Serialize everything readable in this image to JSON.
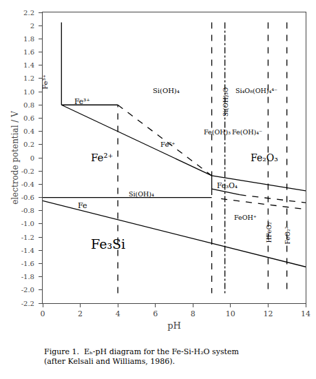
{
  "chart_data": {
    "type": "line",
    "xlabel": "pH",
    "ylabel": "electrode potential / V",
    "caption": "Figure 1.  Eₕ-pH diagram for the Fe-Si-H₂O system\n(after Kelsali and Williams, 1986).",
    "xlim": [
      0,
      14
    ],
    "ylim": [
      -2.2,
      2.2
    ],
    "xticks": [
      0,
      2,
      4,
      6,
      8,
      10,
      12,
      14
    ],
    "yticks": [
      -2.2,
      {
        "value": -2.0,
        "label": "-2.0"
      },
      -1.8,
      -1.6,
      -1.4,
      -1.2,
      {
        "value": -1.0,
        "label": "-1.0"
      },
      -0.8,
      -0.6,
      -0.4,
      -0.2,
      0,
      0.2,
      0.4,
      0.6,
      0.8,
      {
        "value": 1.0,
        "label": "1.0"
      },
      1.2,
      1.4,
      1.6,
      1.8,
      2,
      2.2
    ],
    "grid": false,
    "color": "#000000",
    "series": [
      {
        "x": [
          1.0,
          1.0
        ],
        "values": [
          2.05,
          0.8
        ],
        "line_style": "solid"
      },
      {
        "x": [
          1.0,
          4.0
        ],
        "values": [
          0.8,
          0.8
        ],
        "line_style": "solid"
      },
      {
        "x": [
          1.0,
          9.0
        ],
        "values": [
          0.8,
          -0.27
        ],
        "line_style": "solid"
      },
      {
        "x": [
          0.0,
          9.0
        ],
        "values": [
          -0.6,
          -0.6
        ],
        "line_style": "solid"
      },
      {
        "x": [
          0.0,
          14.0
        ],
        "values": [
          -0.65,
          -1.65
        ],
        "line_style": "solid"
      },
      {
        "x": [
          9.0,
          14.0
        ],
        "values": [
          -0.27,
          -0.5
        ],
        "line_style": "solid"
      },
      {
        "x": [
          9.0,
          9.0
        ],
        "values": [
          -0.27,
          -0.47
        ],
        "line_style": "solid"
      },
      {
        "x": [
          9.0,
          10.5
        ],
        "values": [
          -0.47,
          -0.56
        ],
        "line_style": "solid"
      },
      {
        "x": [
          4.0,
          4.0
        ],
        "values": [
          -2.05,
          0.8
        ],
        "line_style": "dashed"
      },
      {
        "x": [
          4.0,
          9.0
        ],
        "values": [
          0.8,
          -0.27
        ],
        "line_style": "dashed"
      },
      {
        "x": [
          9.0,
          9.0
        ],
        "values": [
          2.05,
          -0.27
        ],
        "line_style": "dashed"
      },
      {
        "x": [
          9.0,
          9.0
        ],
        "values": [
          -0.47,
          -2.05
        ],
        "line_style": "dashed"
      },
      {
        "x": [
          9.7,
          9.7
        ],
        "values": [
          2.05,
          -2.05
        ],
        "line_style": "dashdot"
      },
      {
        "x": [
          12.0,
          12.0
        ],
        "values": [
          2.05,
          -2.05
        ],
        "line_style": "dashed"
      },
      {
        "x": [
          13.0,
          13.0
        ],
        "values": [
          2.05,
          -2.05
        ],
        "line_style": "dashed"
      },
      {
        "x": [
          10.5,
          14.0
        ],
        "values": [
          -0.56,
          -0.68
        ],
        "line_style": "dashed"
      },
      {
        "x": [
          9.5,
          14.0
        ],
        "values": [
          -0.62,
          -0.78
        ],
        "line_style": "dashed"
      }
    ],
    "annotations": [
      {
        "text": "Fe³⁺",
        "x": 0.15,
        "y": 1.15
      },
      {
        "text": "Fe³⁺",
        "x": 1.6,
        "y": 0.86
      },
      {
        "text": "Fe²⁺",
        "x": 2.5,
        "y": 0.0
      },
      {
        "text": "Fe²⁺",
        "x": 6.2,
        "y": 0.2
      },
      {
        "text": "Fe",
        "x": 1.8,
        "y": -0.72
      },
      {
        "text": "Fe₃Si",
        "x": 2.5,
        "y": -1.3
      },
      {
        "text": "Fe₂O₃",
        "x": 11.0,
        "y": 0.0
      },
      {
        "text": "Fe₃O₄",
        "x": 9.2,
        "y": -0.42
      },
      {
        "text": "Si(OH)₄",
        "x": 5.8,
        "y": 1.02
      },
      {
        "text": "Si(OH)₄",
        "x": 4.5,
        "y": -0.55
      },
      {
        "text": "Si(OH)₃O⁻",
        "x": 9.75,
        "y": 0.6
      },
      {
        "text": "Si₄O₈(OH)₄⁴⁻",
        "x": 10.2,
        "y": 1.02
      },
      {
        "text": "Fe(OH)₃",
        "x": 8.5,
        "y": 0.39
      },
      {
        "text": "Fe(OH)₄⁻",
        "x": 10.0,
        "y": 0.39
      },
      {
        "text": "FeOH⁺",
        "x": 10.1,
        "y": -0.9
      },
      {
        "text": "HFeO₂⁻",
        "x": 12.05,
        "y": -1.1
      },
      {
        "text": "FeO₂²⁻",
        "x": 13.05,
        "y": -1.15
      }
    ]
  }
}
